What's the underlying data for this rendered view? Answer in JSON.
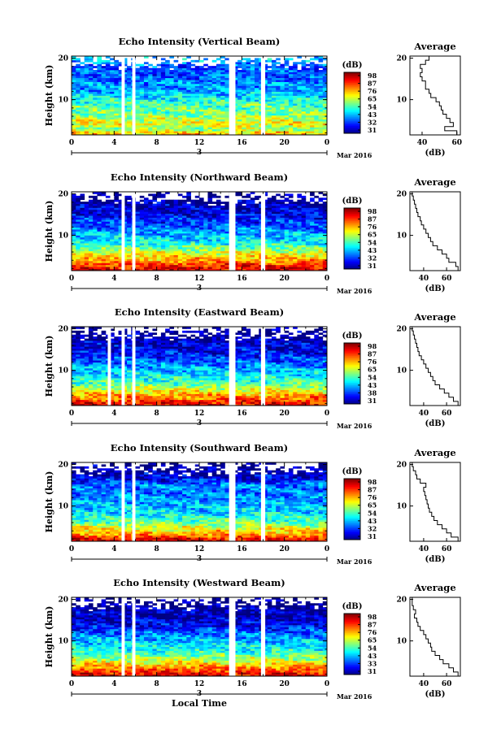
{
  "chart_data": [
    {
      "type": "heatmap",
      "title": "Echo Intensity (Vertical Beam)",
      "ylabel": "Height (km)",
      "x_ticks": [
        "0",
        "4",
        "8",
        "12",
        "16",
        "20",
        "0"
      ],
      "xlim": [
        0,
        24
      ],
      "y_ticks": [
        "10",
        "20"
      ],
      "ylim": [
        1.5,
        20.5
      ],
      "date_label": "3",
      "month_label": "Mar 2016",
      "colorbar": {
        "unit": "(dB)",
        "ticks": [
          "31",
          "32",
          "43",
          "54",
          "65",
          "76",
          "87",
          "98"
        ],
        "range": [
          21,
          98
        ]
      },
      "gaps_hours": [
        [
          4.7,
          5.0
        ],
        [
          5.7,
          6.0
        ],
        [
          14.8,
          15.4
        ],
        [
          17.8,
          18.2
        ]
      ],
      "profile": {
        "title": "Average",
        "xlabel": "(dB)",
        "x_ticks": [
          "40",
          "60"
        ],
        "xlim": [
          33,
          62
        ],
        "y_ticks": [
          "10",
          "20"
        ],
        "heights": [
          2,
          3,
          4,
          5,
          6,
          7,
          8,
          9,
          10,
          11,
          12,
          13,
          14,
          15,
          16,
          17,
          18,
          19,
          20
        ],
        "values": [
          60,
          53,
          58,
          56,
          54,
          52,
          51,
          50,
          48,
          45,
          44,
          42,
          42,
          40,
          39,
          40,
          39,
          42,
          44
        ]
      }
    },
    {
      "type": "heatmap",
      "title": "Echo Intensity (Northward Beam)",
      "ylabel": "Height (km)",
      "x_ticks": [
        "0",
        "4",
        "8",
        "12",
        "16",
        "20",
        "0"
      ],
      "xlim": [
        0,
        24
      ],
      "y_ticks": [
        "10",
        "20"
      ],
      "ylim": [
        1.5,
        20.5
      ],
      "date_label": "3",
      "month_label": "Mar 2016",
      "colorbar": {
        "unit": "(dB)",
        "ticks": [
          "31",
          "32",
          "43",
          "54",
          "65",
          "76",
          "87",
          "98"
        ],
        "range": [
          21,
          98
        ]
      },
      "gaps_hours": [
        [
          4.7,
          5.0
        ],
        [
          5.7,
          6.0
        ],
        [
          14.8,
          15.4
        ],
        [
          17.8,
          18.2
        ]
      ],
      "profile": {
        "title": "Average",
        "xlabel": "(dB)",
        "x_ticks": [
          "40",
          "60"
        ],
        "xlim": [
          28,
          72
        ],
        "y_ticks": [
          "10",
          "20"
        ],
        "heights": [
          2,
          3,
          4,
          5,
          6,
          7,
          8,
          9,
          10,
          11,
          12,
          13,
          14,
          15,
          16,
          17,
          18,
          19,
          20
        ],
        "values": [
          70,
          68,
          62,
          60,
          56,
          52,
          48,
          46,
          44,
          42,
          40,
          38,
          37,
          35,
          34,
          33,
          32,
          31,
          30
        ]
      }
    },
    {
      "type": "heatmap",
      "title": "Echo Intensity (Eastward Beam)",
      "ylabel": "Height (km)",
      "x_ticks": [
        "0",
        "4",
        "8",
        "12",
        "16",
        "20",
        "0"
      ],
      "xlim": [
        0,
        24
      ],
      "y_ticks": [
        "10",
        "20"
      ],
      "ylim": [
        1.5,
        20.5
      ],
      "date_label": "3",
      "month_label": "Mar 2016",
      "colorbar": {
        "unit": "(dB)",
        "ticks": [
          "31",
          "38",
          "43",
          "54",
          "65",
          "76",
          "87",
          "98"
        ],
        "range": [
          21,
          98
        ]
      },
      "gaps_hours": [
        [
          3.4,
          3.7
        ],
        [
          4.7,
          5.0
        ],
        [
          5.7,
          6.0
        ],
        [
          14.8,
          15.4
        ],
        [
          17.8,
          18.2
        ]
      ],
      "profile": {
        "title": "Average",
        "xlabel": "(dB)",
        "x_ticks": [
          "40",
          "60"
        ],
        "xlim": [
          28,
          72
        ],
        "y_ticks": [
          "10",
          "20"
        ],
        "heights": [
          2,
          3,
          4,
          5,
          6,
          7,
          8,
          9,
          10,
          11,
          12,
          13,
          14,
          15,
          16,
          17,
          18,
          19,
          20
        ],
        "values": [
          70,
          66,
          62,
          58,
          54,
          50,
          48,
          46,
          44,
          42,
          40,
          38,
          36,
          35,
          34,
          33,
          32,
          31,
          30
        ]
      }
    },
    {
      "type": "heatmap",
      "title": "Echo Intensity (Southward Beam)",
      "ylabel": "Height (km)",
      "x_ticks": [
        "0",
        "4",
        "8",
        "12",
        "16",
        "20",
        "0"
      ],
      "xlim": [
        0,
        24
      ],
      "y_ticks": [
        "10",
        "20"
      ],
      "ylim": [
        1.5,
        20.5
      ],
      "date_label": "3",
      "month_label": "Mar 2016",
      "colorbar": {
        "unit": "(dB)",
        "ticks": [
          "31",
          "32",
          "43",
          "54",
          "65",
          "76",
          "87",
          "98"
        ],
        "range": [
          21,
          98
        ]
      },
      "gaps_hours": [
        [
          4.7,
          5.0
        ],
        [
          5.7,
          6.0
        ],
        [
          14.8,
          15.4
        ],
        [
          17.8,
          18.2
        ]
      ],
      "profile": {
        "title": "Average",
        "xlabel": "(dB)",
        "x_ticks": [
          "40",
          "60"
        ],
        "xlim": [
          28,
          72
        ],
        "y_ticks": [
          "10",
          "20"
        ],
        "heights": [
          2,
          3,
          4,
          5,
          6,
          7,
          8,
          9,
          10,
          11,
          12,
          13,
          14,
          15,
          16,
          17,
          18,
          19,
          20
        ],
        "values": [
          70,
          64,
          60,
          56,
          52,
          49,
          47,
          45,
          44,
          43,
          42,
          41,
          40,
          42,
          37,
          34,
          33,
          31,
          30
        ]
      }
    },
    {
      "type": "heatmap",
      "title": "Echo Intensity (Westward Beam)",
      "ylabel": "Height (km)",
      "xlabel": "Local Time",
      "x_ticks": [
        "0",
        "4",
        "8",
        "12",
        "16",
        "20",
        "0"
      ],
      "xlim": [
        0,
        24
      ],
      "y_ticks": [
        "10",
        "20"
      ],
      "ylim": [
        1.5,
        20.5
      ],
      "date_label": "3",
      "month_label": "Mar 2016",
      "colorbar": {
        "unit": "(dB)",
        "ticks": [
          "31",
          "33",
          "43",
          "54",
          "65",
          "76",
          "87",
          "98"
        ],
        "range": [
          21,
          98
        ]
      },
      "gaps_hours": [
        [
          4.7,
          5.0
        ],
        [
          5.7,
          6.0
        ],
        [
          14.8,
          15.4
        ],
        [
          17.8,
          18.2
        ]
      ],
      "profile": {
        "title": "Average",
        "xlabel": "(dB)",
        "x_ticks": [
          "40",
          "60"
        ],
        "xlim": [
          28,
          72
        ],
        "y_ticks": [
          "10",
          "20"
        ],
        "heights": [
          2,
          3,
          4,
          5,
          6,
          7,
          8,
          9,
          10,
          11,
          12,
          13,
          14,
          15,
          16,
          17,
          18,
          19,
          20
        ],
        "values": [
          70,
          66,
          62,
          57,
          54,
          50,
          47,
          46,
          44,
          42,
          40,
          37,
          35,
          34,
          32,
          33,
          31,
          30,
          30
        ]
      }
    }
  ]
}
